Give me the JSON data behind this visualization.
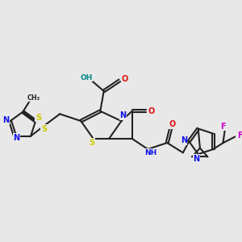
{
  "bg_color": "#e8e8e8",
  "bond_color": "#222222",
  "bond_lw": 1.5,
  "dbo": 0.035,
  "atom_colors": {
    "N": "#1010ee",
    "O": "#dd1111",
    "S": "#cccc00",
    "F": "#cc00cc",
    "H": "#008888",
    "C": "#222222"
  },
  "figsize": [
    3.0,
    3.0
  ],
  "dpi": 100,
  "xlim": [
    -3.2,
    3.5
  ],
  "ylim": [
    -2.6,
    2.0
  ]
}
